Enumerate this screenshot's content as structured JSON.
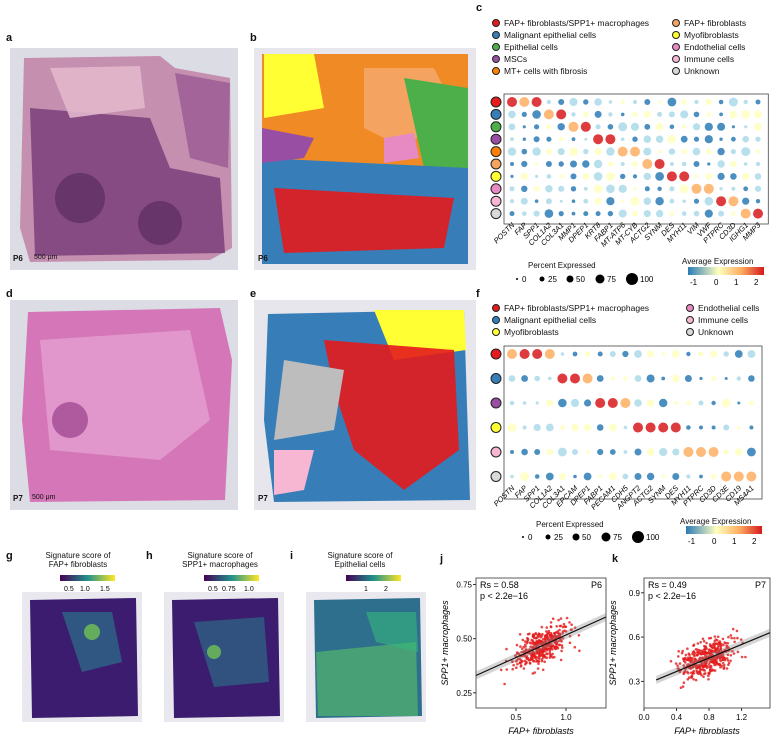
{
  "panel_labels": {
    "a": "a",
    "b": "b",
    "c": "c",
    "d": "d",
    "e": "e",
    "f": "f",
    "g": "g",
    "h": "h",
    "i": "i",
    "j": "j",
    "k": "k"
  },
  "sample_labels": {
    "p6_a": "P6",
    "p6_b": "P6",
    "p7_d": "P7",
    "p7_e": "P7"
  },
  "scale_bars": {
    "a": "500 μm",
    "d": "500 μm"
  },
  "legend_c": {
    "items": [
      {
        "label": "FAP+ fibroblasts/SPP1+ macrophages",
        "color": "#e41a1c"
      },
      {
        "label": "Malignant epithelial cells",
        "color": "#377eb8"
      },
      {
        "label": "Epithelial cells",
        "color": "#4daf4a"
      },
      {
        "label": "MSCs",
        "color": "#984ea3"
      },
      {
        "label": "MT+ cells with fibrosis",
        "color": "#ff7f00"
      },
      {
        "label": "FAP+ fibroblasts",
        "color": "#f4a460"
      },
      {
        "label": "Myofibroblasts",
        "color": "#ffff33"
      },
      {
        "label": "Endothelial cells",
        "color": "#e78ac3"
      },
      {
        "label": "Immune cells",
        "color": "#f7b6d2"
      },
      {
        "label": "Unknown",
        "color": "#d9d9d9"
      }
    ]
  },
  "legend_f": {
    "items": [
      {
        "label": "FAP+ fibroblasts/SPP1+ macrophages",
        "color": "#e41a1c"
      },
      {
        "label": "Malignant epithelial cells",
        "color": "#377eb8"
      },
      {
        "label": "Myofibroblasts",
        "color": "#ffff33"
      },
      {
        "label": "Endothelial cells",
        "color": "#e78ac3"
      },
      {
        "label": "Immune cells",
        "color": "#f7b6d2"
      },
      {
        "label": "Unknown",
        "color": "#d9d9d9"
      }
    ]
  },
  "dotplot_c": {
    "genes": [
      "POSTN",
      "FAP",
      "SPP1",
      "COL1A2",
      "COL3A1",
      "MMP1",
      "DPEP1",
      "KRT8",
      "FABP1",
      "MT-ATP6",
      "MT-CYB",
      "ACTG2",
      "SYNM",
      "DES",
      "MYH11",
      "VIM",
      "VWF",
      "PTPRC",
      "CD3D",
      "IGHG1",
      "MMP3"
    ],
    "row_colors": [
      "#e41a1c",
      "#377eb8",
      "#4daf4a",
      "#984ea3",
      "#ff7f00",
      "#f4a460",
      "#ffff33",
      "#e78ac3",
      "#f7b6d2",
      "#d9d9d9"
    ]
  },
  "dotplot_f": {
    "genes": [
      "POSTN",
      "FAP",
      "SPP1",
      "COL1A2",
      "COL3A1",
      "EPCAM",
      "DPEP1",
      "FABP1",
      "PECAM1",
      "CDH5",
      "ANGPT2",
      "ACTG2",
      "SYNM",
      "DES",
      "MYH11",
      "PTPRC",
      "CD3D",
      "CD3E",
      "CD19",
      "MS4A1"
    ],
    "row_colors": [
      "#e41a1c",
      "#377eb8",
      "#984ea3",
      "#ffff33",
      "#f7b6d2",
      "#d9d9d9"
    ]
  },
  "size_legend": {
    "title": "Percent Expressed",
    "values": [
      "0",
      "25",
      "50",
      "75",
      "100"
    ]
  },
  "color_legend": {
    "title": "Average Expression",
    "ticks": [
      "-1",
      "0",
      "1",
      "2"
    ]
  },
  "signature": {
    "g": {
      "title_1": "Signature score of",
      "title_2": "FAP+ fibroblasts",
      "ticks": [
        "0.5",
        "1.0",
        "1.5"
      ]
    },
    "h": {
      "title_1": "Signature score of",
      "title_2": "SPP1+ macrophages",
      "ticks": [
        "0.5",
        "0.75",
        "1.0"
      ]
    },
    "i": {
      "title_1": "Signature score of",
      "title_2": "Epithelial cells",
      "ticks": [
        "1",
        "2"
      ]
    }
  },
  "chart_data": [
    {
      "type": "scatter",
      "panel": "j",
      "sample": "P6",
      "stat_1": "Rs = 0.58",
      "stat_2": "p < 2.2e−16",
      "xlabel": "FAP+ fibroblasts",
      "ylabel": "SPP1+ macrophages",
      "xlim": [
        0.1,
        1.4
      ],
      "ylim": [
        0.18,
        0.78
      ],
      "xticks": [
        0.5,
        1.0
      ],
      "yticks": [
        0.25,
        0.5,
        0.75
      ],
      "xtick_labels": [
        "0.5",
        "1.0"
      ],
      "ytick_labels": [
        "0.25",
        "0.50",
        "0.75"
      ],
      "fit": {
        "x": [
          0.1,
          1.4
        ],
        "y": [
          0.33,
          0.6
        ]
      }
    },
    {
      "type": "scatter",
      "panel": "k",
      "sample": "P7",
      "stat_1": "Rs = 0.49",
      "stat_2": "p < 2.2e−16",
      "xlabel": "FAP+ fibroblasts",
      "ylabel": "SPP1+ macrophages",
      "xlim": [
        0.0,
        1.55
      ],
      "ylim": [
        0.12,
        1.0
      ],
      "xticks": [
        0.0,
        0.4,
        0.8,
        1.2
      ],
      "yticks": [
        0.3,
        0.6,
        0.9
      ],
      "xtick_labels": [
        "0.0",
        "0.4",
        "0.8",
        "1.2"
      ],
      "ytick_labels": [
        "0.3",
        "0.6",
        "0.9"
      ],
      "fit": {
        "x": [
          0.15,
          1.55
        ],
        "y": [
          0.31,
          0.63
        ]
      }
    }
  ]
}
